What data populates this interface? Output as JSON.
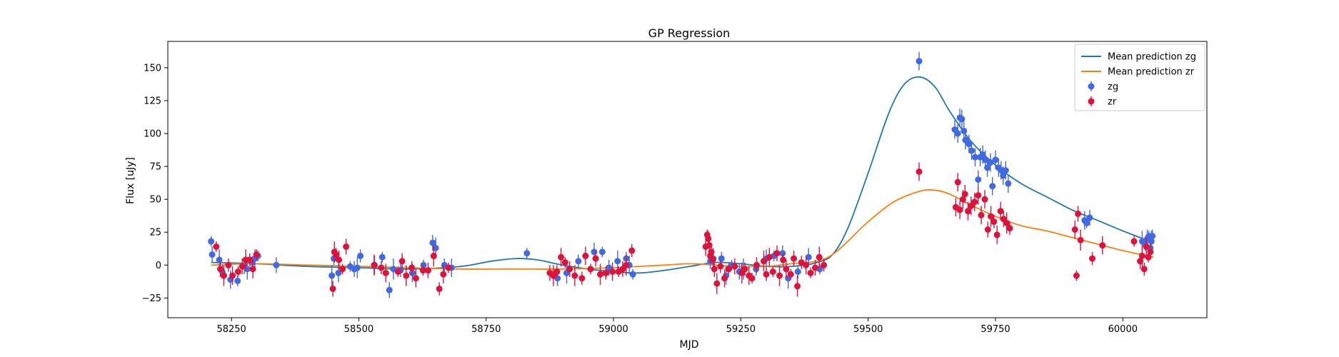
{
  "chart_data": {
    "type": "scatter",
    "title": "GP Regression",
    "xlabel": "MJD",
    "ylabel": "Flux [uJy]",
    "xlim": [
      58125,
      60165
    ],
    "ylim": [
      -40,
      170
    ],
    "xticks": [
      58250,
      58500,
      58750,
      59000,
      59250,
      59500,
      59750,
      60000
    ],
    "yticks": [
      -25,
      0,
      25,
      50,
      75,
      100,
      125,
      150
    ],
    "grid": false,
    "legend": {
      "position": "top-right",
      "entries": [
        "Mean prediction zg",
        "Mean prediction zr",
        "zg",
        "zr"
      ]
    },
    "colors": {
      "zg_line": "#1f77b4",
      "zr_line": "#ff7f0e",
      "zg_points": "#4169e1",
      "zr_points": "#dc143c"
    },
    "series": [
      {
        "name": "Mean prediction zg",
        "kind": "line",
        "x": [
          58210,
          58300,
          58400,
          58500,
          58600,
          58700,
          58760,
          58810,
          58850,
          58900,
          58950,
          59000,
          59050,
          59100,
          59150,
          59200,
          59250,
          59300,
          59350,
          59400,
          59430,
          59460,
          59500,
          59540,
          59570,
          59600,
          59630,
          59660,
          59700,
          59750,
          59800,
          59850,
          59900,
          59950,
          60000,
          60060
        ],
        "y": [
          2,
          1,
          -1,
          -2,
          -3,
          -1,
          3,
          5,
          4,
          0,
          -3,
          -5,
          -6,
          -4,
          -1,
          2,
          1,
          -1,
          -1,
          2,
          8,
          28,
          70,
          115,
          137,
          143,
          136,
          117,
          95,
          76,
          62,
          52,
          42,
          34,
          26,
          17
        ]
      },
      {
        "name": "Mean prediction zr",
        "kind": "line",
        "x": [
          58210,
          58300,
          58400,
          58500,
          58600,
          58700,
          58800,
          58900,
          59000,
          59050,
          59100,
          59150,
          59200,
          59250,
          59300,
          59350,
          59400,
          59430,
          59460,
          59500,
          59550,
          59600,
          59630,
          59660,
          59700,
          59750,
          59800,
          59850,
          59900,
          59950,
          60000,
          60060
        ],
        "y": [
          0,
          1,
          0,
          -1,
          -2,
          -3,
          -3,
          -3,
          -2,
          -1,
          0,
          1,
          0,
          -1,
          -1,
          1,
          3,
          8,
          18,
          33,
          48,
          56,
          57,
          54,
          46,
          37,
          30,
          26,
          21,
          16,
          11,
          6
        ]
      },
      {
        "name": "zg",
        "kind": "scatter_err",
        "x": [
          58210,
          58212,
          58226,
          58232,
          58248,
          58262,
          58275,
          58281,
          58291,
          58296,
          58302,
          58338,
          58447,
          58451,
          58460,
          58483,
          58491,
          58497,
          58503,
          58531,
          58546,
          58560,
          58568,
          58582,
          58605,
          58627,
          58645,
          58651,
          58668,
          58682,
          58830,
          58890,
          58908,
          58931,
          58962,
          58978,
          58991,
          59008,
          59025,
          59031,
          59038,
          59190,
          59196,
          59212,
          59221,
          59232,
          59247,
          59255,
          59280,
          59300,
          59315,
          59332,
          59343,
          59362,
          59383,
          59405,
          59600,
          59670,
          59676,
          59680,
          59684,
          59688,
          59691,
          59698,
          59703,
          59710,
          59716,
          59720,
          59725,
          59730,
          59734,
          59740,
          59744,
          59750,
          59756,
          59761,
          59765,
          59770,
          59775,
          59925,
          59929,
          59935,
          60038,
          60044,
          60048,
          60051,
          60054,
          60056,
          60058
        ],
        "y": [
          18,
          8,
          4,
          -5,
          -11,
          -12,
          -1,
          -3,
          2,
          5,
          7,
          0,
          -8,
          5,
          -6,
          -1,
          -3,
          -2,
          7,
          0,
          6,
          -19,
          -3,
          -4,
          -6,
          0,
          17,
          13,
          0,
          -2,
          9,
          -10,
          -6,
          3,
          10,
          10,
          -2,
          3,
          5,
          0,
          -7,
          3,
          5,
          5,
          -8,
          0,
          -5,
          -3,
          -3,
          5,
          7,
          9,
          -10,
          -5,
          6,
          -3,
          155,
          103,
          100,
          112,
          111,
          102,
          95,
          92,
          87,
          82,
          65,
          82,
          84,
          80,
          74,
          78,
          60,
          80,
          74,
          72,
          68,
          72,
          62,
          34,
          32,
          36,
          18,
          16,
          20,
          22,
          13,
          18,
          22
        ]
      },
      {
        "name": "zr",
        "kind": "scatter_err",
        "x": [
          58220,
          58228,
          58235,
          58244,
          58252,
          58263,
          58271,
          58278,
          58286,
          58292,
          58299,
          58449,
          58452,
          58455,
          58461,
          58468,
          58475,
          58530,
          58544,
          58553,
          58577,
          58585,
          58593,
          58604,
          58612,
          58626,
          58636,
          58647,
          58658,
          58666,
          58676,
          58875,
          58882,
          58889,
          58897,
          58905,
          58914,
          58924,
          58938,
          58945,
          58955,
          58965,
          58974,
          58985,
          58998,
          59010,
          59018,
          59025,
          59036,
          59181,
          59184,
          59186,
          59188,
          59190,
          59192,
          59195,
          59198,
          59203,
          59210,
          59218,
          59226,
          59238,
          59252,
          59258,
          59266,
          59272,
          59281,
          59295,
          59300,
          59306,
          59313,
          59321,
          59326,
          59333,
          59339,
          59348,
          59354,
          59361,
          59369,
          59378,
          59387,
          59396,
          59404,
          59413,
          59600,
          59672,
          59676,
          59680,
          59686,
          59690,
          59696,
          59702,
          59709,
          59716,
          59722,
          59729,
          59735,
          59741,
          59747,
          59753,
          59760,
          59766,
          59772,
          59778,
          59906,
          59909,
          59912,
          59917,
          59940,
          59960,
          60022,
          60034,
          60038,
          60042,
          60046,
          60050,
          60054
        ],
        "y": [
          14,
          -3,
          -8,
          0,
          -8,
          -5,
          -1,
          4,
          4,
          -3,
          8,
          -18,
          10,
          8,
          4,
          -3,
          14,
          0,
          -2,
          -6,
          -5,
          3,
          -8,
          -2,
          -10,
          -4,
          -4,
          7,
          -18,
          -7,
          -2,
          -6,
          -8,
          -5,
          6,
          2,
          -3,
          -8,
          -10,
          7,
          -3,
          5,
          -7,
          -6,
          -5,
          -5,
          -3,
          0,
          11,
          14,
          23,
          20,
          15,
          7,
          10,
          4,
          -3,
          -14,
          -1,
          -10,
          -3,
          -1,
          -6,
          -3,
          -8,
          -10,
          0,
          3,
          -7,
          6,
          -5,
          9,
          -8,
          4,
          -3,
          -7,
          5,
          -16,
          2,
          0,
          -6,
          -2,
          6,
          0,
          71,
          44,
          63,
          42,
          50,
          54,
          41,
          45,
          48,
          53,
          38,
          50,
          27,
          37,
          33,
          23,
          41,
          35,
          32,
          28,
          27,
          -8,
          39,
          19,
          5,
          15,
          18,
          3,
          7,
          -3,
          14,
          6,
          10
        ]
      }
    ]
  }
}
